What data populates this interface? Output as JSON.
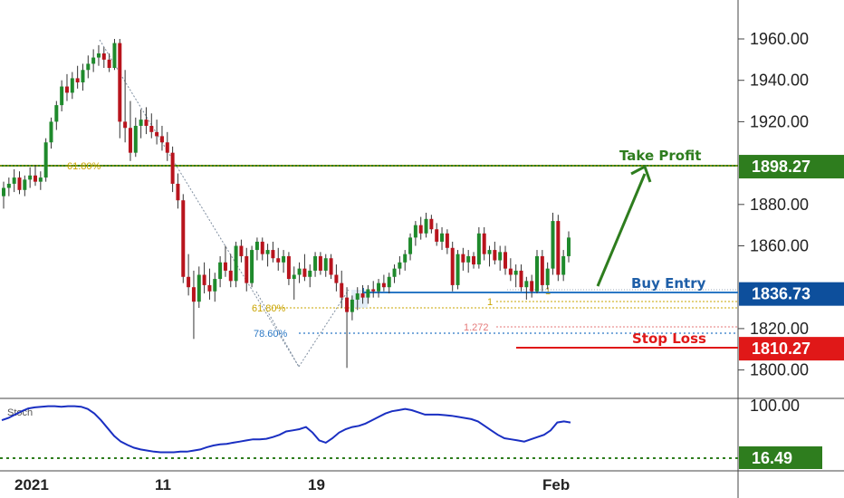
{
  "chart_data": {
    "type": "candlestick",
    "price_axis": {
      "range": [
        1795,
        1975
      ],
      "ticks": [
        "1960.00",
        "1940.00",
        "1920.00",
        "1880.00",
        "1860.00",
        "1820.00",
        "1800.00"
      ]
    },
    "date_axis": [
      "2021",
      "11",
      "19",
      "Feb"
    ],
    "indicator": {
      "name": "Stoch",
      "ticks": [
        "100.00"
      ],
      "level_label": "16.49",
      "level": 16.49
    },
    "price_tags": [
      {
        "label": "1898.27",
        "value": 1898.27,
        "color": "#2e7d1e"
      },
      {
        "label": "1836.73",
        "value": 1836.73,
        "color": "#0d4f9c"
      },
      {
        "label": "1810.27",
        "value": 1810.27,
        "color": "#e01818"
      }
    ],
    "annotations": {
      "take_profit": "Take Profit",
      "buy_entry": "Buy Entry",
      "stop_loss": "Stop Loss",
      "fib_upper": "61.80%",
      "fib_lower_618": "61.80%",
      "fib_lower_786": "78.60%",
      "fib_ext_1": "1",
      "fib_ext_1272": "1.272",
      "fib_ext_1b": "1"
    },
    "candles": [
      {
        "o": 1884,
        "h": 1891,
        "l": 1878,
        "c": 1888
      },
      {
        "o": 1888,
        "h": 1893,
        "l": 1884,
        "c": 1890
      },
      {
        "o": 1890,
        "h": 1897,
        "l": 1886,
        "c": 1893
      },
      {
        "o": 1893,
        "h": 1896,
        "l": 1885,
        "c": 1887
      },
      {
        "o": 1887,
        "h": 1894,
        "l": 1884,
        "c": 1892
      },
      {
        "o": 1892,
        "h": 1898,
        "l": 1888,
        "c": 1894
      },
      {
        "o": 1894,
        "h": 1899,
        "l": 1889,
        "c": 1891
      },
      {
        "o": 1891,
        "h": 1896,
        "l": 1887,
        "c": 1893
      },
      {
        "o": 1893,
        "h": 1912,
        "l": 1891,
        "c": 1910
      },
      {
        "o": 1910,
        "h": 1922,
        "l": 1907,
        "c": 1920
      },
      {
        "o": 1920,
        "h": 1930,
        "l": 1916,
        "c": 1928
      },
      {
        "o": 1928,
        "h": 1940,
        "l": 1925,
        "c": 1937
      },
      {
        "o": 1937,
        "h": 1943,
        "l": 1930,
        "c": 1934
      },
      {
        "o": 1934,
        "h": 1944,
        "l": 1931,
        "c": 1941
      },
      {
        "o": 1941,
        "h": 1947,
        "l": 1936,
        "c": 1939
      },
      {
        "o": 1939,
        "h": 1948,
        "l": 1935,
        "c": 1945
      },
      {
        "o": 1945,
        "h": 1952,
        "l": 1941,
        "c": 1948
      },
      {
        "o": 1948,
        "h": 1955,
        "l": 1944,
        "c": 1951
      },
      {
        "o": 1951,
        "h": 1957,
        "l": 1947,
        "c": 1953
      },
      {
        "o": 1953,
        "h": 1956,
        "l": 1946,
        "c": 1950
      },
      {
        "o": 1950,
        "h": 1953,
        "l": 1944,
        "c": 1946
      },
      {
        "o": 1946,
        "h": 1960,
        "l": 1945,
        "c": 1958
      },
      {
        "o": 1958,
        "h": 1960,
        "l": 1912,
        "c": 1920
      },
      {
        "o": 1920,
        "h": 1945,
        "l": 1910,
        "c": 1917
      },
      {
        "o": 1917,
        "h": 1930,
        "l": 1901,
        "c": 1905
      },
      {
        "o": 1905,
        "h": 1922,
        "l": 1903,
        "c": 1918
      },
      {
        "o": 1918,
        "h": 1926,
        "l": 1912,
        "c": 1921
      },
      {
        "o": 1921,
        "h": 1927,
        "l": 1914,
        "c": 1918
      },
      {
        "o": 1918,
        "h": 1924,
        "l": 1912,
        "c": 1915
      },
      {
        "o": 1915,
        "h": 1921,
        "l": 1909,
        "c": 1913
      },
      {
        "o": 1913,
        "h": 1918,
        "l": 1906,
        "c": 1910
      },
      {
        "o": 1910,
        "h": 1915,
        "l": 1901,
        "c": 1905
      },
      {
        "o": 1905,
        "h": 1908,
        "l": 1886,
        "c": 1890
      },
      {
        "o": 1890,
        "h": 1895,
        "l": 1878,
        "c": 1882
      },
      {
        "o": 1882,
        "h": 1885,
        "l": 1842,
        "c": 1845
      },
      {
        "o": 1845,
        "h": 1856,
        "l": 1836,
        "c": 1840
      },
      {
        "o": 1840,
        "h": 1848,
        "l": 1815,
        "c": 1833
      },
      {
        "o": 1833,
        "h": 1850,
        "l": 1830,
        "c": 1846
      },
      {
        "o": 1846,
        "h": 1852,
        "l": 1837,
        "c": 1841
      },
      {
        "o": 1841,
        "h": 1849,
        "l": 1834,
        "c": 1838
      },
      {
        "o": 1838,
        "h": 1847,
        "l": 1833,
        "c": 1844
      },
      {
        "o": 1844,
        "h": 1855,
        "l": 1840,
        "c": 1852
      },
      {
        "o": 1852,
        "h": 1860,
        "l": 1845,
        "c": 1848
      },
      {
        "o": 1848,
        "h": 1856,
        "l": 1840,
        "c": 1843
      },
      {
        "o": 1843,
        "h": 1862,
        "l": 1840,
        "c": 1860
      },
      {
        "o": 1860,
        "h": 1863,
        "l": 1852,
        "c": 1855
      },
      {
        "o": 1855,
        "h": 1859,
        "l": 1838,
        "c": 1842
      },
      {
        "o": 1842,
        "h": 1860,
        "l": 1840,
        "c": 1858
      },
      {
        "o": 1858,
        "h": 1864,
        "l": 1853,
        "c": 1862
      },
      {
        "o": 1862,
        "h": 1864,
        "l": 1853,
        "c": 1856
      },
      {
        "o": 1856,
        "h": 1861,
        "l": 1850,
        "c": 1858
      },
      {
        "o": 1858,
        "h": 1862,
        "l": 1852,
        "c": 1854
      },
      {
        "o": 1854,
        "h": 1859,
        "l": 1848,
        "c": 1852
      },
      {
        "o": 1852,
        "h": 1858,
        "l": 1847,
        "c": 1855
      },
      {
        "o": 1855,
        "h": 1857,
        "l": 1841,
        "c": 1844
      },
      {
        "o": 1844,
        "h": 1850,
        "l": 1834,
        "c": 1846
      },
      {
        "o": 1846,
        "h": 1852,
        "l": 1842,
        "c": 1849
      },
      {
        "o": 1849,
        "h": 1856,
        "l": 1843,
        "c": 1845
      },
      {
        "o": 1845,
        "h": 1851,
        "l": 1840,
        "c": 1848
      },
      {
        "o": 1848,
        "h": 1857,
        "l": 1845,
        "c": 1855
      },
      {
        "o": 1855,
        "h": 1857,
        "l": 1846,
        "c": 1848
      },
      {
        "o": 1848,
        "h": 1856,
        "l": 1845,
        "c": 1854
      },
      {
        "o": 1854,
        "h": 1856,
        "l": 1844,
        "c": 1846
      },
      {
        "o": 1846,
        "h": 1851,
        "l": 1838,
        "c": 1842
      },
      {
        "o": 1842,
        "h": 1848,
        "l": 1830,
        "c": 1835
      },
      {
        "o": 1835,
        "h": 1840,
        "l": 1801,
        "c": 1828
      },
      {
        "o": 1828,
        "h": 1836,
        "l": 1824,
        "c": 1834
      },
      {
        "o": 1834,
        "h": 1840,
        "l": 1829,
        "c": 1837
      },
      {
        "o": 1837,
        "h": 1841,
        "l": 1832,
        "c": 1835
      },
      {
        "o": 1835,
        "h": 1841,
        "l": 1832,
        "c": 1839
      },
      {
        "o": 1839,
        "h": 1843,
        "l": 1835,
        "c": 1838
      },
      {
        "o": 1838,
        "h": 1844,
        "l": 1835,
        "c": 1842
      },
      {
        "o": 1842,
        "h": 1846,
        "l": 1838,
        "c": 1840
      },
      {
        "o": 1840,
        "h": 1847,
        "l": 1837,
        "c": 1845
      },
      {
        "o": 1845,
        "h": 1851,
        "l": 1842,
        "c": 1849
      },
      {
        "o": 1849,
        "h": 1855,
        "l": 1846,
        "c": 1852
      },
      {
        "o": 1852,
        "h": 1858,
        "l": 1848,
        "c": 1856
      },
      {
        "o": 1856,
        "h": 1866,
        "l": 1853,
        "c": 1864
      },
      {
        "o": 1864,
        "h": 1872,
        "l": 1860,
        "c": 1870
      },
      {
        "o": 1870,
        "h": 1874,
        "l": 1863,
        "c": 1866
      },
      {
        "o": 1866,
        "h": 1876,
        "l": 1864,
        "c": 1873
      },
      {
        "o": 1873,
        "h": 1875,
        "l": 1866,
        "c": 1868
      },
      {
        "o": 1868,
        "h": 1871,
        "l": 1860,
        "c": 1862
      },
      {
        "o": 1862,
        "h": 1869,
        "l": 1858,
        "c": 1866
      },
      {
        "o": 1866,
        "h": 1868,
        "l": 1856,
        "c": 1859
      },
      {
        "o": 1859,
        "h": 1862,
        "l": 1838,
        "c": 1841
      },
      {
        "o": 1841,
        "h": 1858,
        "l": 1839,
        "c": 1856
      },
      {
        "o": 1856,
        "h": 1859,
        "l": 1848,
        "c": 1852
      },
      {
        "o": 1852,
        "h": 1858,
        "l": 1847,
        "c": 1855
      },
      {
        "o": 1855,
        "h": 1857,
        "l": 1849,
        "c": 1851
      },
      {
        "o": 1851,
        "h": 1869,
        "l": 1849,
        "c": 1866
      },
      {
        "o": 1866,
        "h": 1869,
        "l": 1853,
        "c": 1856
      },
      {
        "o": 1856,
        "h": 1860,
        "l": 1850,
        "c": 1858
      },
      {
        "o": 1858,
        "h": 1862,
        "l": 1851,
        "c": 1853
      },
      {
        "o": 1853,
        "h": 1860,
        "l": 1848,
        "c": 1857
      },
      {
        "o": 1857,
        "h": 1860,
        "l": 1846,
        "c": 1849
      },
      {
        "o": 1849,
        "h": 1854,
        "l": 1843,
        "c": 1846
      },
      {
        "o": 1846,
        "h": 1851,
        "l": 1840,
        "c": 1848
      },
      {
        "o": 1848,
        "h": 1851,
        "l": 1838,
        "c": 1840
      },
      {
        "o": 1840,
        "h": 1845,
        "l": 1834,
        "c": 1843
      },
      {
        "o": 1843,
        "h": 1846,
        "l": 1835,
        "c": 1838
      },
      {
        "o": 1838,
        "h": 1858,
        "l": 1837,
        "c": 1855
      },
      {
        "o": 1855,
        "h": 1858,
        "l": 1838,
        "c": 1841
      },
      {
        "o": 1841,
        "h": 1852,
        "l": 1839,
        "c": 1849
      },
      {
        "o": 1849,
        "h": 1876,
        "l": 1846,
        "c": 1872
      },
      {
        "o": 1872,
        "h": 1875,
        "l": 1843,
        "c": 1846
      },
      {
        "o": 1846,
        "h": 1858,
        "l": 1843,
        "c": 1855
      },
      {
        "o": 1855,
        "h": 1867,
        "l": 1852,
        "c": 1864
      }
    ],
    "stoch": [
      74,
      78,
      84,
      90,
      95,
      97,
      98,
      99,
      99,
      98,
      99,
      99,
      98,
      94,
      86,
      74,
      60,
      46,
      36,
      30,
      25,
      22,
      20,
      18,
      17,
      17,
      17,
      18,
      18,
      20,
      22,
      26,
      29,
      31,
      32,
      34,
      36,
      38,
      40,
      40,
      41,
      44,
      48,
      54,
      56,
      58,
      62,
      52,
      38,
      34,
      42,
      52,
      58,
      62,
      64,
      68,
      74,
      80,
      86,
      90,
      92,
      94,
      92,
      88,
      84,
      84,
      84,
      83,
      82,
      80,
      78,
      76,
      72,
      64,
      56,
      48,
      42,
      40,
      38,
      36,
      40,
      44,
      48,
      56,
      70,
      72,
      70
    ]
  }
}
